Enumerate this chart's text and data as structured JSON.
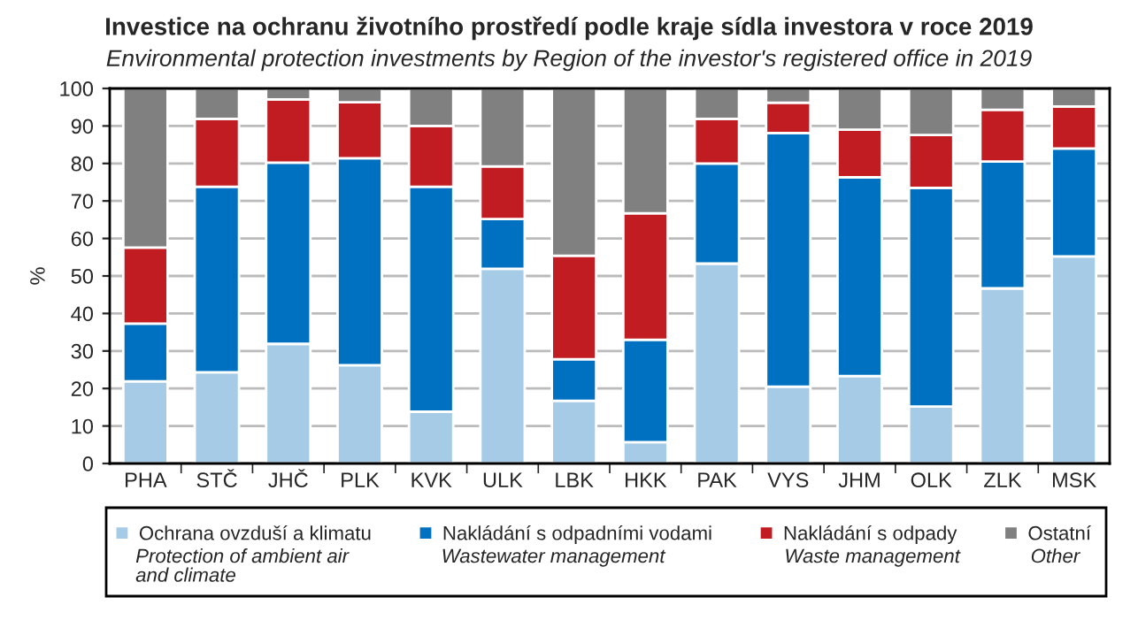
{
  "chart_data": {
    "type": "bar",
    "stacked": true,
    "title": "Investice na ochranu životního prostředí podle kraje sídla investora v roce 2019",
    "subtitle": "Environmental protection investments by Region of the investor's registered office in 2019",
    "ylabel": "%",
    "categories": [
      "PHA",
      "STČ",
      "JHČ",
      "PLK",
      "KVK",
      "ULK",
      "LBK",
      "HKK",
      "PAK",
      "VYS",
      "JHM",
      "OLK",
      "ZLK",
      "MSK"
    ],
    "series": [
      {
        "name": "Ochrana ovzduší a klimatu",
        "color": "#a6cbe6",
        "values": [
          21.9,
          24.3,
          31.9,
          26.2,
          13.8,
          51.9,
          16.7,
          5.7,
          53.3,
          20.5,
          23.3,
          15.2,
          46.7,
          55.2
        ]
      },
      {
        "name": "Nakládání s odpadními vodami",
        "color": "#0070c0",
        "values": [
          15.4,
          49.5,
          48.3,
          55.2,
          60.0,
          13.3,
          11.1,
          27.3,
          26.7,
          67.6,
          53.0,
          58.3,
          33.8,
          28.8
        ]
      },
      {
        "name": "Nakládání s odpady",
        "color": "#c01c22",
        "values": [
          20.3,
          18.1,
          16.9,
          14.9,
          16.2,
          14.0,
          27.6,
          33.7,
          11.9,
          8.1,
          12.7,
          14.1,
          13.8,
          11.2
        ]
      },
      {
        "name": "Ostatní",
        "color": "#808080",
        "values": [
          42.4,
          8.1,
          2.9,
          3.7,
          10.0,
          20.8,
          44.6,
          33.3,
          8.1,
          3.8,
          11.0,
          12.4,
          5.7,
          4.8
        ]
      }
    ],
    "annotations": [
      "Protection of ambient air\nand climate",
      "Wastewater management",
      "Waste management",
      "Other"
    ],
    "ylim": [
      0,
      100
    ],
    "yticks": [
      0,
      10,
      20,
      30,
      40,
      50,
      60,
      70,
      80,
      90,
      100
    ],
    "grid": "y",
    "legend": "bottom"
  }
}
